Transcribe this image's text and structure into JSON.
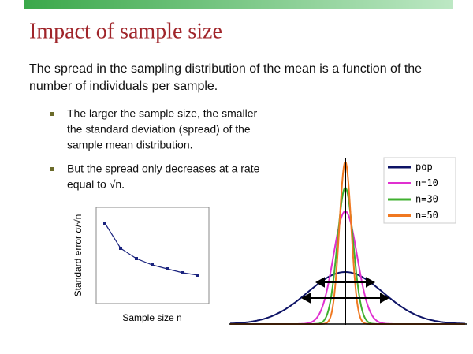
{
  "title": "Impact of sample size",
  "paragraph": [
    "The spread in the sampling distribution of the mean is a function of the",
    "number of individuals per sample."
  ],
  "bullets": [
    [
      "The larger the sample size, the smaller",
      "the standard deviation (spread) of the",
      "sample mean distribution."
    ],
    [
      "But the spread only decreases at a rate",
      "equal to √n."
    ]
  ],
  "small_chart": {
    "ylabel": "Standard error σ/√n",
    "xlabel": "Sample size n"
  },
  "legend": [
    {
      "name": "pop",
      "color": "#0d1366"
    },
    {
      "name": "n=10",
      "color": "#e030d0"
    },
    {
      "name": "n=30",
      "color": "#40b030"
    },
    {
      "name": "n=50",
      "color": "#f07820"
    }
  ]
}
